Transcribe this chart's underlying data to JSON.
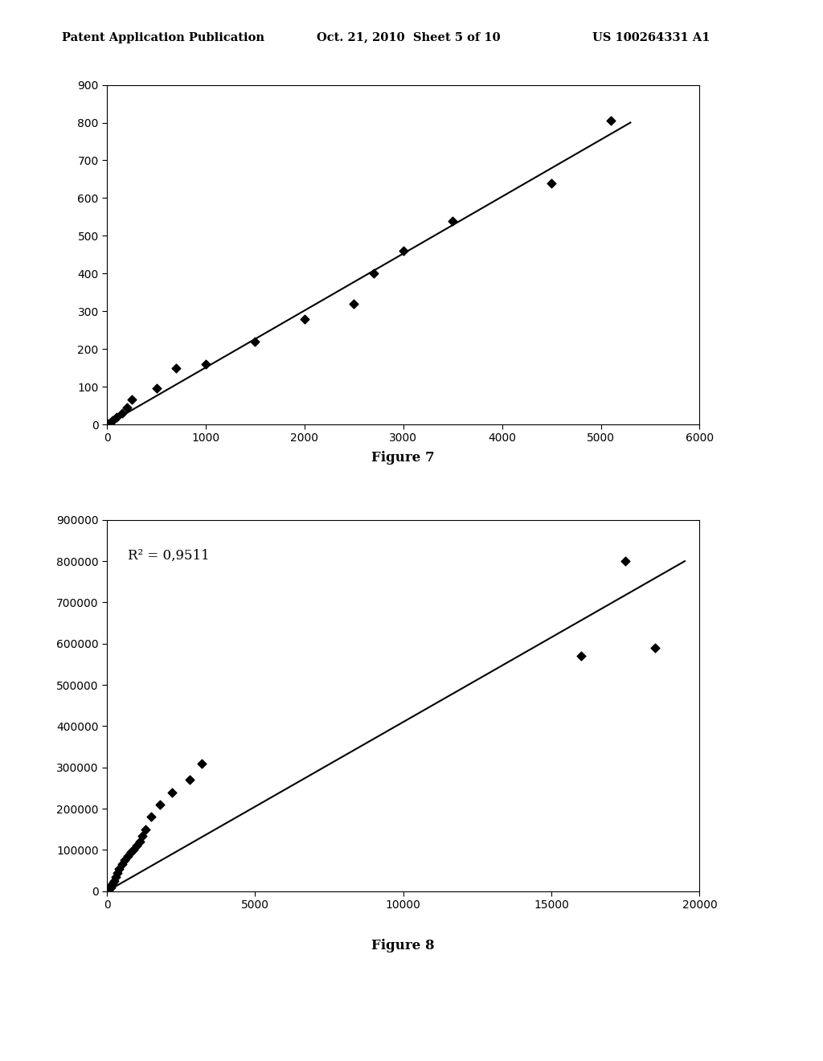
{
  "fig7": {
    "scatter_x": [
      10,
      30,
      60,
      100,
      150,
      200,
      250,
      500,
      700,
      1000,
      1500,
      2000,
      2500,
      2700,
      3000,
      3500,
      4500,
      5100
    ],
    "scatter_y": [
      2,
      5,
      10,
      20,
      30,
      45,
      65,
      95,
      150,
      160,
      220,
      280,
      320,
      400,
      460,
      540,
      640,
      805
    ],
    "trendline_x": [
      0,
      5300
    ],
    "trendline_y": [
      0,
      800
    ],
    "xlim": [
      0,
      6000
    ],
    "ylim": [
      0,
      900
    ],
    "xticks": [
      0,
      1000,
      2000,
      3000,
      4000,
      5000,
      6000
    ],
    "yticks": [
      0,
      100,
      200,
      300,
      400,
      500,
      600,
      700,
      800,
      900
    ],
    "figure_label": "Figure 7"
  },
  "fig8": {
    "scatter_x": [
      50,
      80,
      120,
      150,
      200,
      250,
      300,
      350,
      400,
      500,
      600,
      700,
      800,
      900,
      1000,
      1100,
      1200,
      1300,
      1500,
      1800,
      2200,
      2800,
      3200,
      17500,
      18500,
      16000
    ],
    "scatter_y": [
      3000,
      6000,
      10000,
      15000,
      20000,
      25000,
      35000,
      45000,
      55000,
      65000,
      75000,
      85000,
      95000,
      100000,
      110000,
      120000,
      135000,
      150000,
      180000,
      210000,
      240000,
      270000,
      310000,
      800000,
      590000,
      570000
    ],
    "trendline_x": [
      0,
      19500
    ],
    "trendline_y": [
      0,
      800000
    ],
    "annotation": "R² = 0,9511",
    "xlim": [
      0,
      20000
    ],
    "ylim": [
      0,
      900000
    ],
    "xticks": [
      0,
      5000,
      10000,
      15000,
      20000
    ],
    "yticks": [
      0,
      100000,
      200000,
      300000,
      400000,
      500000,
      600000,
      700000,
      800000,
      900000
    ],
    "figure_label": "Figure 8"
  },
  "header_left": "Patent Application Publication",
  "header_center": "Oct. 21, 2010  Sheet 5 of 10",
  "header_right": "US 100264331 A1",
  "background_color": "#ffffff",
  "scatter_color": "#000000",
  "line_color": "#000000"
}
